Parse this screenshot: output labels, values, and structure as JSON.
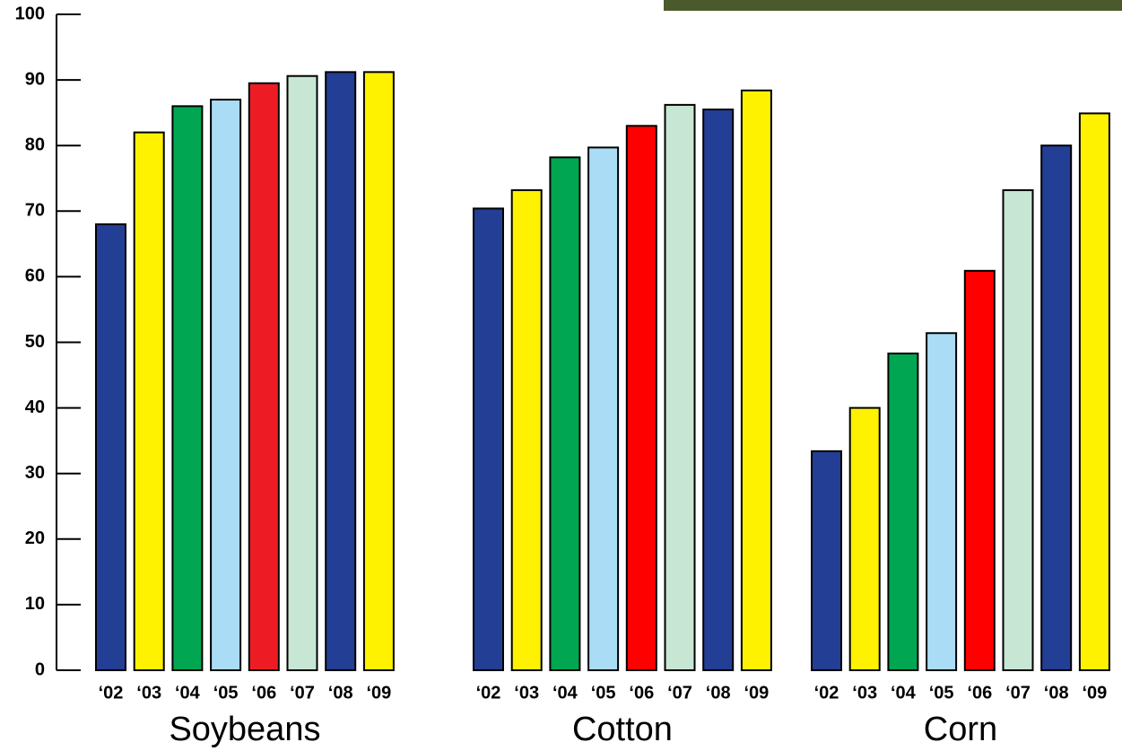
{
  "chart_data": {
    "type": "bar",
    "categories": [
      "‘02",
      "‘03",
      "‘04",
      "‘05",
      "‘06",
      "‘07",
      "‘08",
      "‘09"
    ],
    "series": [
      {
        "name": "Soybeans",
        "colors": [
          "#233e95",
          "#fff200",
          "#00a651",
          "#abdcf5",
          "#ed1c24",
          "#c8e6d4",
          "#233e95",
          "#fff200"
        ],
        "values": [
          68,
          82,
          86,
          87,
          89.5,
          90.6,
          91.2,
          91.2
        ]
      },
      {
        "name": "Cotton",
        "colors": [
          "#233e95",
          "#fff200",
          "#00a651",
          "#abdcf5",
          "#ff0000",
          "#c8e6d4",
          "#233e95",
          "#fff200"
        ],
        "values": [
          70.4,
          73.2,
          78.2,
          79.7,
          83,
          86.2,
          85.5,
          88.4
        ]
      },
      {
        "name": "Corn",
        "colors": [
          "#233e95",
          "#fff200",
          "#00a651",
          "#abdcf5",
          "#ff0000",
          "#c8e6d4",
          "#233e95",
          "#fff200"
        ],
        "values": [
          33.4,
          40,
          48.3,
          51.4,
          60.9,
          73.2,
          80,
          84.9
        ]
      }
    ],
    "ylim": [
      0,
      100
    ],
    "yticks": [
      0,
      10,
      20,
      30,
      40,
      50,
      60,
      70,
      80,
      90,
      100
    ]
  }
}
